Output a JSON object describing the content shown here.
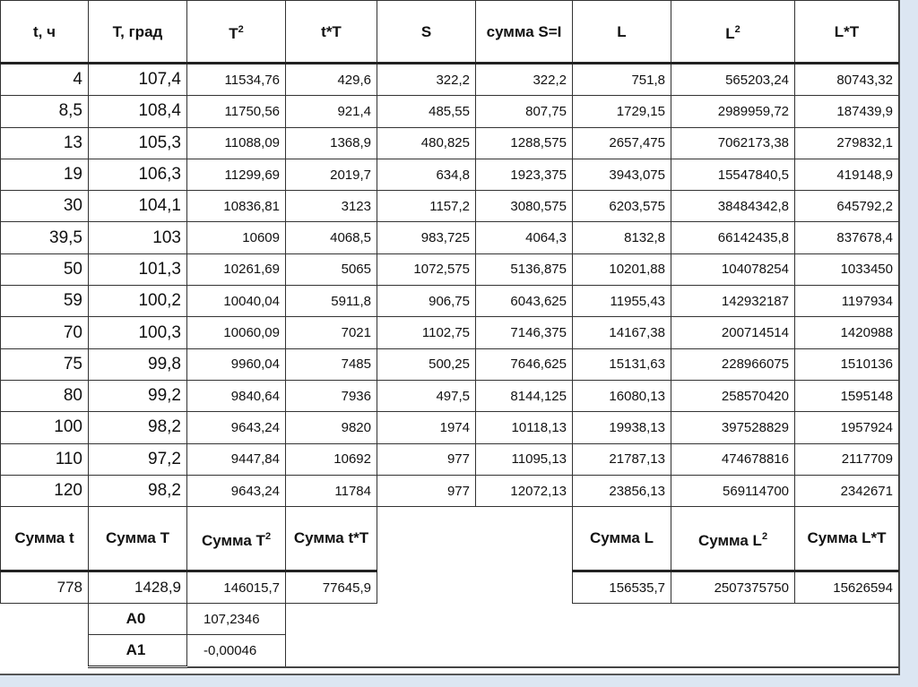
{
  "headers": [
    "t, ч",
    "T, град",
    "T",
    "t*T",
    "S",
    "сумма S=I",
    "L",
    "L",
    "L*T"
  ],
  "header_sups": {
    "t2": "2",
    "l2": "2"
  },
  "rows": [
    [
      "4",
      "107,4",
      "11534,76",
      "429,6",
      "322,2",
      "322,2",
      "751,8",
      "565203,24",
      "80743,32"
    ],
    [
      "8,5",
      "108,4",
      "11750,56",
      "921,4",
      "485,55",
      "807,75",
      "1729,15",
      "2989959,72",
      "187439,9"
    ],
    [
      "13",
      "105,3",
      "11088,09",
      "1368,9",
      "480,825",
      "1288,575",
      "2657,475",
      "7062173,38",
      "279832,1"
    ],
    [
      "19",
      "106,3",
      "11299,69",
      "2019,7",
      "634,8",
      "1923,375",
      "3943,075",
      "15547840,5",
      "419148,9"
    ],
    [
      "30",
      "104,1",
      "10836,81",
      "3123",
      "1157,2",
      "3080,575",
      "6203,575",
      "38484342,8",
      "645792,2"
    ],
    [
      "39,5",
      "103",
      "10609",
      "4068,5",
      "983,725",
      "4064,3",
      "8132,8",
      "66142435,8",
      "837678,4"
    ],
    [
      "50",
      "101,3",
      "10261,69",
      "5065",
      "1072,575",
      "5136,875",
      "10201,88",
      "104078254",
      "1033450"
    ],
    [
      "59",
      "100,2",
      "10040,04",
      "5911,8",
      "906,75",
      "6043,625",
      "11955,43",
      "142932187",
      "1197934"
    ],
    [
      "70",
      "100,3",
      "10060,09",
      "7021",
      "1102,75",
      "7146,375",
      "14167,38",
      "200714514",
      "1420988"
    ],
    [
      "75",
      "99,8",
      "9960,04",
      "7485",
      "500,25",
      "7646,625",
      "15131,63",
      "228966075",
      "1510136"
    ],
    [
      "80",
      "99,2",
      "9840,64",
      "7936",
      "497,5",
      "8144,125",
      "16080,13",
      "258570420",
      "1595148"
    ],
    [
      "100",
      "98,2",
      "9643,24",
      "9820",
      "1974",
      "10118,13",
      "19938,13",
      "397528829",
      "1957924"
    ],
    [
      "110",
      "97,2",
      "9447,84",
      "10692",
      "977",
      "11095,13",
      "21787,13",
      "474678816",
      "2117709"
    ],
    [
      "120",
      "98,2",
      "9643,24",
      "11784",
      "977",
      "12072,13",
      "23856,13",
      "569114700",
      "2342671"
    ]
  ],
  "sum_headers": {
    "t": "Сумма t",
    "T": "Сумма T",
    "T2": "Сумма T",
    "T2_sup": "2",
    "tT": "Сумма t*T",
    "L": "Сумма L",
    "L2": "Сумма L",
    "L2_sup": "2",
    "LT": "Сумма L*T"
  },
  "sums": {
    "t": "778",
    "T": "1428,9",
    "T2": "146015,7",
    "tT": "77645,9",
    "L": "156535,7",
    "L2": "2507375750",
    "LT": "15626594"
  },
  "coefficients": [
    {
      "label": "A0",
      "value": "107,2346"
    },
    {
      "label": "A1",
      "value": "-0,00046"
    }
  ]
}
